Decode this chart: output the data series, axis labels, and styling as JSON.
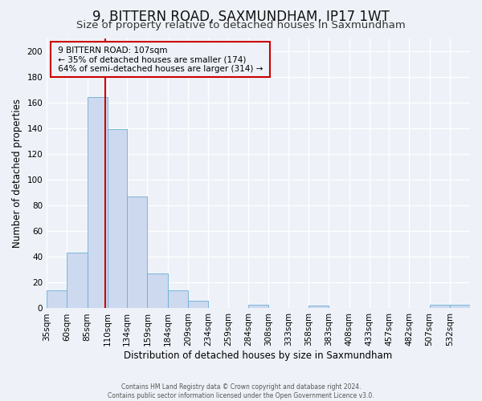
{
  "title": "9, BITTERN ROAD, SAXMUNDHAM, IP17 1WT",
  "subtitle": "Size of property relative to detached houses in Saxmundham",
  "xlabel": "Distribution of detached houses by size in Saxmundham",
  "ylabel": "Number of detached properties",
  "footer_line1": "Contains HM Land Registry data © Crown copyright and database right 2024.",
  "footer_line2": "Contains public sector information licensed under the Open Government Licence v3.0.",
  "bin_labels": [
    "35sqm",
    "60sqm",
    "85sqm",
    "110sqm",
    "134sqm",
    "159sqm",
    "184sqm",
    "209sqm",
    "234sqm",
    "259sqm",
    "284sqm",
    "308sqm",
    "333sqm",
    "358sqm",
    "383sqm",
    "408sqm",
    "433sqm",
    "457sqm",
    "482sqm",
    "507sqm",
    "532sqm"
  ],
  "bar_values": [
    14,
    43,
    164,
    139,
    87,
    27,
    14,
    6,
    0,
    0,
    3,
    0,
    0,
    2,
    0,
    0,
    0,
    0,
    0,
    3,
    3
  ],
  "bin_edges": [
    35,
    60,
    85,
    110,
    134,
    159,
    184,
    209,
    234,
    259,
    284,
    308,
    333,
    358,
    383,
    408,
    433,
    457,
    482,
    507,
    532,
    557
  ],
  "property_value": 107,
  "annotation_line1": "9 BITTERN ROAD: 107sqm",
  "annotation_line2": "← 35% of detached houses are smaller (174)",
  "annotation_line3": "64% of semi-detached houses are larger (314) →",
  "bar_color": "#ccd9ee",
  "bar_edge_color": "#6baed6",
  "vline_color": "#cc0000",
  "annotation_box_edge_color": "#cc0000",
  "ylim": [
    0,
    210
  ],
  "yticks": [
    0,
    20,
    40,
    60,
    80,
    100,
    120,
    140,
    160,
    180,
    200
  ],
  "background_color": "#eef2f8",
  "grid_color": "#ffffff",
  "title_fontsize": 12,
  "subtitle_fontsize": 9.5,
  "axis_label_fontsize": 8.5,
  "tick_fontsize": 7.5
}
